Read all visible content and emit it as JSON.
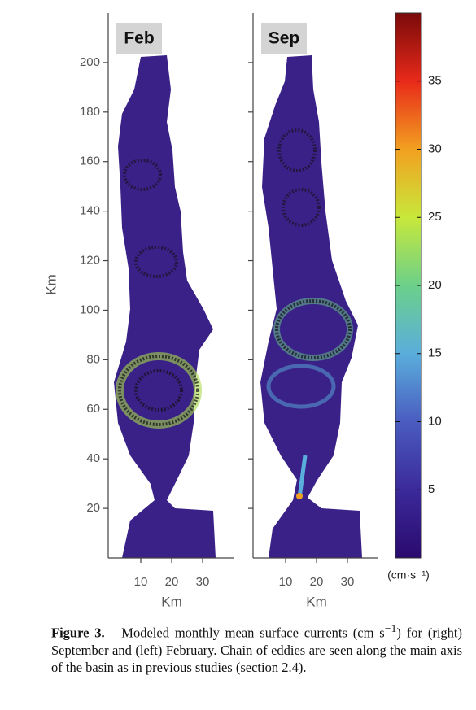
{
  "chart_data": [
    {
      "type": "map",
      "title": "Feb",
      "xlabel": "Km",
      "ylabel": "Km",
      "xlim": [
        0,
        40
      ],
      "ylim": [
        0,
        220
      ],
      "xticks": [
        10,
        20,
        30
      ],
      "yticks": [
        20,
        40,
        60,
        80,
        100,
        120,
        140,
        160,
        180,
        200
      ]
    },
    {
      "type": "map",
      "title": "Sep",
      "xlabel": "Km",
      "xlim": [
        0,
        40
      ],
      "ylim": [
        0,
        220
      ],
      "xticks": [
        10,
        20,
        30
      ]
    },
    {
      "type": "colorbar",
      "label": "(cm·s⁻¹)",
      "lim": [
        0,
        40
      ],
      "ticks": [
        5,
        10,
        15,
        20,
        25,
        30,
        35
      ],
      "colors": [
        "#2a0a6e",
        "#3b2a9a",
        "#4a5cc0",
        "#5aaedc",
        "#6cd08a",
        "#c8e83a",
        "#f2a020",
        "#e82a1a",
        "#7a0a0a"
      ]
    }
  ],
  "caption": {
    "label": "Figure 3.",
    "text_before": "Modeled monthly mean surface currents (cm s",
    "superscript": "−1",
    "text_after": ") for (right) September and (left) February. Chain of eddies are seen along the main axis of the basin as in previous studies (section 2.4)."
  }
}
